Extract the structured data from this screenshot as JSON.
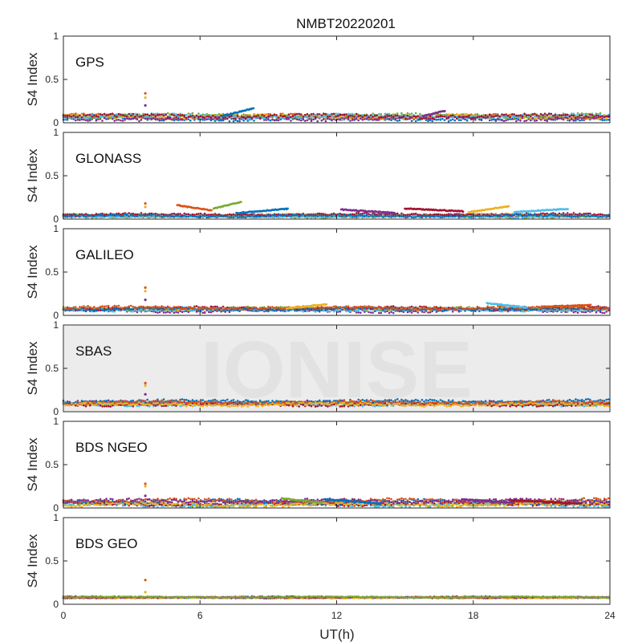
{
  "watermark": "IONISE",
  "colors": {
    "axis": "#262626",
    "watermark_band": "#ececec",
    "series_palette": [
      "#0072BD",
      "#D95319",
      "#EDB120",
      "#7E2F8E",
      "#77AC30",
      "#4DBEEE",
      "#A2142F"
    ]
  },
  "chart_data": {
    "type": "scatter",
    "title": "NMBT20220201",
    "xlabel": "UT(h)",
    "ylabel": "S4 Index",
    "xlim": [
      0,
      24
    ],
    "ylim": [
      0,
      1
    ],
    "xticks": [
      0,
      6,
      12,
      18,
      24
    ],
    "xtick_labels": [
      "0",
      "6",
      "12",
      "18",
      "24"
    ],
    "yticks": [
      0,
      0.5,
      1
    ],
    "ytick_labels": [
      "0",
      "0.5",
      "1"
    ],
    "grid": false,
    "panels": [
      {
        "name": "GPS",
        "baseline": 0.07,
        "spread": 0.05,
        "spikes": [
          {
            "x": 3.6,
            "y": 0.34
          },
          {
            "x": 3.6,
            "y": 0.29
          },
          {
            "x": 3.6,
            "y": 0.2
          }
        ],
        "arcs": [
          {
            "x": [
              7.0,
              8.4
            ],
            "y": [
              0.08,
              0.17
            ]
          },
          {
            "x": [
              15.8,
              16.8
            ],
            "y": [
              0.08,
              0.14
            ]
          }
        ]
      },
      {
        "name": "GLONASS",
        "baseline": 0.04,
        "spread": 0.03,
        "spikes": [
          {
            "x": 3.6,
            "y": 0.18
          },
          {
            "x": 3.6,
            "y": 0.14
          }
        ],
        "arcs": [
          {
            "x": [
              5.0,
              6.5
            ],
            "y": [
              0.16,
              0.1
            ]
          },
          {
            "x": [
              6.6,
              7.8
            ],
            "y": [
              0.12,
              0.2
            ]
          },
          {
            "x": [
              7.6,
              9.9
            ],
            "y": [
              0.07,
              0.12
            ]
          },
          {
            "x": [
              12.2,
              14.6
            ],
            "y": [
              0.11,
              0.07
            ]
          },
          {
            "x": [
              15.0,
              17.6
            ],
            "y": [
              0.12,
              0.09
            ]
          },
          {
            "x": [
              17.8,
              19.6
            ],
            "y": [
              0.08,
              0.15
            ]
          },
          {
            "x": [
              19.8,
              22.2
            ],
            "y": [
              0.08,
              0.12
            ]
          }
        ]
      },
      {
        "name": "GALILEO",
        "baseline": 0.07,
        "spread": 0.04,
        "spikes": [
          {
            "x": 3.6,
            "y": 0.32
          },
          {
            "x": 3.6,
            "y": 0.28
          },
          {
            "x": 3.6,
            "y": 0.18
          }
        ],
        "arcs": [
          {
            "x": [
              9.8,
              11.6
            ],
            "y": [
              0.08,
              0.13
            ]
          },
          {
            "x": [
              18.6,
              20.4
            ],
            "y": [
              0.14,
              0.09
            ]
          },
          {
            "x": [
              21.0,
              23.2
            ],
            "y": [
              0.1,
              0.12
            ]
          }
        ]
      },
      {
        "name": "SBAS",
        "baseline": 0.1,
        "spread": 0.04,
        "spikes": [
          {
            "x": 3.6,
            "y": 0.33
          },
          {
            "x": 3.6,
            "y": 0.3
          },
          {
            "x": 3.6,
            "y": 0.2
          }
        ],
        "arcs": []
      },
      {
        "name": "BDS NGEO",
        "baseline": 0.06,
        "spread": 0.05,
        "spikes": [
          {
            "x": 3.6,
            "y": 0.28
          },
          {
            "x": 3.6,
            "y": 0.25
          },
          {
            "x": 3.6,
            "y": 0.14
          }
        ],
        "arcs": [
          {
            "x": [
              9.6,
              11.4
            ],
            "y": [
              0.11,
              0.06
            ]
          },
          {
            "x": [
              11.5,
              14.0
            ],
            "y": [
              0.1,
              0.05
            ]
          },
          {
            "x": [
              17.5,
              19.8
            ],
            "y": [
              0.1,
              0.06
            ]
          },
          {
            "x": [
              19.6,
              22.8
            ],
            "y": [
              0.09,
              0.05
            ]
          }
        ]
      },
      {
        "name": "BDS GEO",
        "baseline": 0.08,
        "spread": 0.015,
        "spikes": [
          {
            "x": 3.6,
            "y": 0.28
          },
          {
            "x": 3.6,
            "y": 0.14
          }
        ],
        "arcs": []
      }
    ]
  }
}
